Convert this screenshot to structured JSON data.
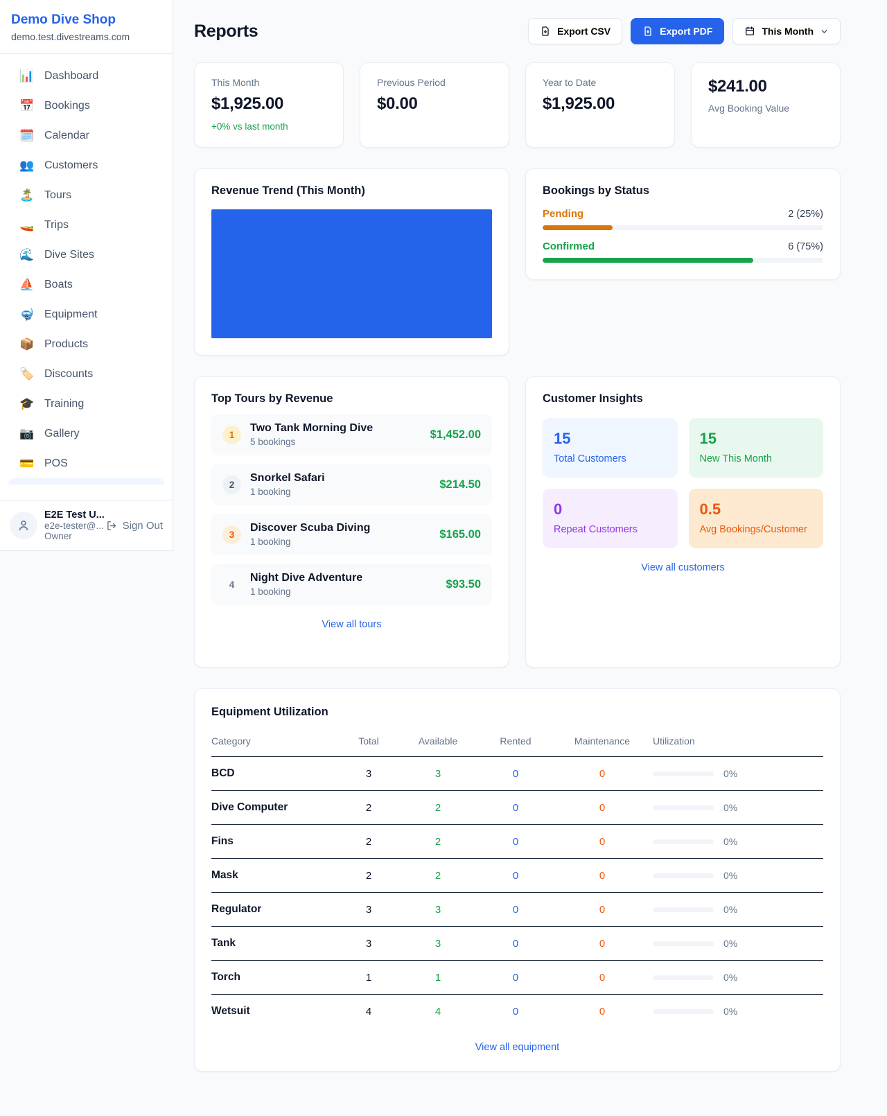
{
  "sidebar": {
    "shop_name": "Demo Dive Shop",
    "domain": "demo.test.divestreams.com",
    "items": [
      {
        "icon": "📊",
        "label": "Dashboard"
      },
      {
        "icon": "📅",
        "label": "Bookings"
      },
      {
        "icon": "🗓️",
        "label": "Calendar"
      },
      {
        "icon": "👥",
        "label": "Customers"
      },
      {
        "icon": "🏝️",
        "label": "Tours"
      },
      {
        "icon": "🚤",
        "label": "Trips"
      },
      {
        "icon": "🌊",
        "label": "Dive Sites"
      },
      {
        "icon": "⛵",
        "label": "Boats"
      },
      {
        "icon": "🤿",
        "label": "Equipment"
      },
      {
        "icon": "📦",
        "label": "Products"
      },
      {
        "icon": "🏷️",
        "label": "Discounts"
      },
      {
        "icon": "🎓",
        "label": "Training"
      },
      {
        "icon": "📷",
        "label": "Gallery"
      },
      {
        "icon": "💳",
        "label": "POS"
      }
    ],
    "user": {
      "name": "E2E Test U...",
      "email": "e2e-tester@...",
      "role": "Owner",
      "sign_out_label": "Sign Out"
    }
  },
  "header": {
    "title": "Reports",
    "export_csv_label": "Export CSV",
    "export_pdf_label": "Export PDF",
    "period_label": "This Month"
  },
  "stats": [
    {
      "label": "This Month",
      "value": "$1,925.00",
      "delta": "+0% vs last month"
    },
    {
      "label": "Previous Period",
      "value": "$0.00"
    },
    {
      "label": "Year to Date",
      "value": "$1,925.00"
    },
    {
      "label": "Avg Booking Value",
      "value": "$241.00"
    }
  ],
  "revenue_trend": {
    "title": "Revenue Trend (This Month)",
    "fill_color": "#2563eb",
    "note": "single full-width filled bar spanning entire plot area"
  },
  "bookings_by_status": {
    "title": "Bookings by Status",
    "rows": [
      {
        "label": "Pending",
        "value": "2 (25%)",
        "count": 2,
        "percent": "25%",
        "color": "#d97706"
      },
      {
        "label": "Confirmed",
        "value": "6 (75%)",
        "count": 6,
        "percent": "75%",
        "color": "#16a34a"
      }
    ]
  },
  "top_tours": {
    "title": "Top Tours by Revenue",
    "link_label": "View all tours",
    "rows": [
      {
        "rank": "1",
        "name": "Two Tank Morning Dive",
        "bookings": "5 bookings",
        "revenue": "$1,452.00"
      },
      {
        "rank": "2",
        "name": "Snorkel Safari",
        "bookings": "1 booking",
        "revenue": "$214.50"
      },
      {
        "rank": "3",
        "name": "Discover Scuba Diving",
        "bookings": "1 booking",
        "revenue": "$165.00"
      },
      {
        "rank": "4",
        "name": "Night Dive Adventure",
        "bookings": "1 booking",
        "revenue": "$93.50"
      }
    ]
  },
  "customer_insights": {
    "title": "Customer Insights",
    "link_label": "View all customers",
    "tiles": [
      {
        "value": "15",
        "label": "Total Customers",
        "color": "#2563eb"
      },
      {
        "value": "15",
        "label": "New This Month",
        "color": "#16a34a"
      },
      {
        "value": "0",
        "label": "Repeat Customers",
        "color": "#9333ea"
      },
      {
        "value": "0.5",
        "label": "Avg Bookings/Customer",
        "color": "#ea580c"
      }
    ]
  },
  "equipment": {
    "title": "Equipment Utilization",
    "link_label": "View all equipment",
    "columns": [
      "Category",
      "Total",
      "Available",
      "Rented",
      "Maintenance",
      "Utilization"
    ],
    "rows": [
      {
        "category": "BCD",
        "total": "3",
        "available": "3",
        "rented": "0",
        "maintenance": "0",
        "utilization": "0%"
      },
      {
        "category": "Dive Computer",
        "total": "2",
        "available": "2",
        "rented": "0",
        "maintenance": "0",
        "utilization": "0%"
      },
      {
        "category": "Fins",
        "total": "2",
        "available": "2",
        "rented": "0",
        "maintenance": "0",
        "utilization": "0%"
      },
      {
        "category": "Mask",
        "total": "2",
        "available": "2",
        "rented": "0",
        "maintenance": "0",
        "utilization": "0%"
      },
      {
        "category": "Regulator",
        "total": "3",
        "available": "3",
        "rented": "0",
        "maintenance": "0",
        "utilization": "0%"
      },
      {
        "category": "Tank",
        "total": "3",
        "available": "3",
        "rented": "0",
        "maintenance": "0",
        "utilization": "0%"
      },
      {
        "category": "Torch",
        "total": "1",
        "available": "1",
        "rented": "0",
        "maintenance": "0",
        "utilization": "0%"
      },
      {
        "category": "Wetsuit",
        "total": "4",
        "available": "4",
        "rented": "0",
        "maintenance": "0",
        "utilization": "0%"
      }
    ]
  }
}
